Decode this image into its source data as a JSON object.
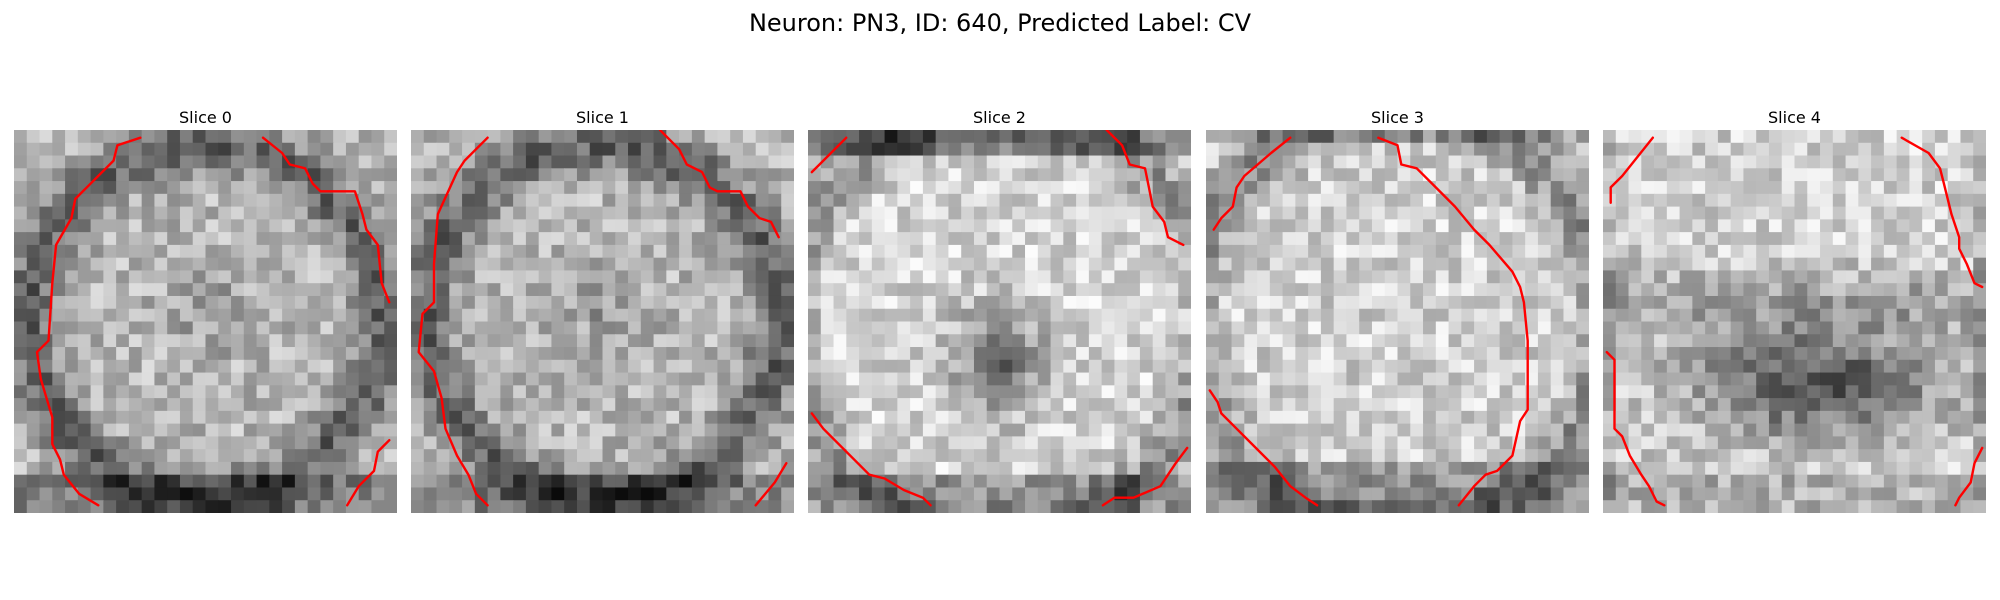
{
  "figure": {
    "title": "Neuron: PN3, ID: 640, Predicted Label: CV",
    "contour_color": "#ff0000",
    "grid_size": 30,
    "panels": [
      {
        "title": "Slice 0",
        "pattern": "ring",
        "contours": [
          [
            [
              0.33,
              0.02
            ],
            [
              0.27,
              0.04
            ],
            [
              0.26,
              0.08
            ],
            [
              0.21,
              0.13
            ],
            [
              0.16,
              0.18
            ],
            [
              0.15,
              0.23
            ],
            [
              0.11,
              0.3
            ],
            [
              0.1,
              0.4
            ],
            [
              0.09,
              0.55
            ],
            [
              0.06,
              0.58
            ],
            [
              0.07,
              0.65
            ],
            [
              0.1,
              0.75
            ],
            [
              0.1,
              0.82
            ],
            [
              0.12,
              0.86
            ],
            [
              0.13,
              0.9
            ],
            [
              0.17,
              0.95
            ],
            [
              0.22,
              0.98
            ]
          ],
          [
            [
              0.65,
              0.02
            ],
            [
              0.7,
              0.06
            ],
            [
              0.72,
              0.09
            ],
            [
              0.76,
              0.1
            ],
            [
              0.78,
              0.14
            ],
            [
              0.8,
              0.16
            ],
            [
              0.89,
              0.16
            ],
            [
              0.91,
              0.22
            ],
            [
              0.92,
              0.26
            ],
            [
              0.95,
              0.3
            ],
            [
              0.96,
              0.4
            ],
            [
              0.98,
              0.45
            ]
          ],
          [
            [
              0.98,
              0.81
            ],
            [
              0.95,
              0.84
            ],
            [
              0.94,
              0.89
            ],
            [
              0.9,
              0.93
            ],
            [
              0.87,
              0.98
            ]
          ]
        ]
      },
      {
        "title": "Slice 1",
        "pattern": "ring",
        "contours": [
          [
            [
              0.2,
              0.02
            ],
            [
              0.14,
              0.08
            ],
            [
              0.12,
              0.11
            ],
            [
              0.07,
              0.22
            ],
            [
              0.06,
              0.35
            ],
            [
              0.06,
              0.45
            ],
            [
              0.03,
              0.48
            ],
            [
              0.02,
              0.58
            ],
            [
              0.06,
              0.63
            ],
            [
              0.08,
              0.7
            ],
            [
              0.09,
              0.78
            ],
            [
              0.12,
              0.85
            ],
            [
              0.15,
              0.9
            ],
            [
              0.17,
              0.95
            ],
            [
              0.2,
              0.98
            ]
          ],
          [
            [
              0.65,
              0.0
            ],
            [
              0.7,
              0.05
            ],
            [
              0.72,
              0.09
            ],
            [
              0.76,
              0.11
            ],
            [
              0.78,
              0.15
            ],
            [
              0.8,
              0.16
            ],
            [
              0.86,
              0.16
            ],
            [
              0.88,
              0.2
            ],
            [
              0.9,
              0.22
            ],
            [
              0.91,
              0.23
            ],
            [
              0.94,
              0.24
            ],
            [
              0.96,
              0.28
            ]
          ],
          [
            [
              0.98,
              0.87
            ],
            [
              0.95,
              0.92
            ],
            [
              0.9,
              0.98
            ]
          ]
        ]
      },
      {
        "title": "Slice 2",
        "pattern": "center",
        "contours": [
          [
            [
              0.1,
              0.02
            ],
            [
              0.03,
              0.09
            ],
            [
              0.01,
              0.11
            ]
          ],
          [
            [
              0.78,
              0.0
            ],
            [
              0.82,
              0.04
            ],
            [
              0.84,
              0.09
            ],
            [
              0.88,
              0.1
            ],
            [
              0.89,
              0.15
            ],
            [
              0.9,
              0.2
            ],
            [
              0.93,
              0.24
            ],
            [
              0.94,
              0.28
            ],
            [
              0.98,
              0.3
            ]
          ],
          [
            [
              0.01,
              0.74
            ],
            [
              0.04,
              0.78
            ],
            [
              0.1,
              0.84
            ],
            [
              0.16,
              0.9
            ],
            [
              0.2,
              0.91
            ],
            [
              0.25,
              0.94
            ],
            [
              0.3,
              0.96
            ],
            [
              0.32,
              0.98
            ]
          ],
          [
            [
              0.99,
              0.83
            ],
            [
              0.96,
              0.87
            ],
            [
              0.92,
              0.93
            ],
            [
              0.85,
              0.96
            ],
            [
              0.8,
              0.96
            ],
            [
              0.77,
              0.98
            ]
          ]
        ]
      },
      {
        "title": "Slice 3",
        "pattern": "bright",
        "contours": [
          [
            [
              0.22,
              0.02
            ],
            [
              0.17,
              0.06
            ],
            [
              0.1,
              0.12
            ],
            [
              0.08,
              0.15
            ],
            [
              0.07,
              0.2
            ],
            [
              0.04,
              0.23
            ],
            [
              0.02,
              0.26
            ]
          ],
          [
            [
              0.45,
              0.02
            ],
            [
              0.5,
              0.04
            ],
            [
              0.51,
              0.09
            ],
            [
              0.55,
              0.1
            ],
            [
              0.6,
              0.15
            ],
            [
              0.65,
              0.2
            ],
            [
              0.7,
              0.26
            ],
            [
              0.74,
              0.3
            ],
            [
              0.8,
              0.37
            ],
            [
              0.82,
              0.41
            ],
            [
              0.83,
              0.45
            ],
            [
              0.84,
              0.55
            ],
            [
              0.84,
              0.6
            ],
            [
              0.84,
              0.73
            ],
            [
              0.82,
              0.76
            ],
            [
              0.8,
              0.85
            ],
            [
              0.76,
              0.89
            ],
            [
              0.73,
              0.9
            ],
            [
              0.7,
              0.93
            ],
            [
              0.66,
              0.98
            ]
          ],
          [
            [
              0.01,
              0.68
            ],
            [
              0.03,
              0.71
            ],
            [
              0.04,
              0.74
            ],
            [
              0.08,
              0.78
            ],
            [
              0.13,
              0.83
            ],
            [
              0.18,
              0.88
            ],
            [
              0.22,
              0.93
            ],
            [
              0.26,
              0.96
            ],
            [
              0.29,
              0.98
            ]
          ]
        ]
      },
      {
        "title": "Slice 4",
        "pattern": "band",
        "contours": [
          [
            [
              0.13,
              0.02
            ],
            [
              0.05,
              0.12
            ],
            [
              0.02,
              0.15
            ],
            [
              0.02,
              0.19
            ]
          ],
          [
            [
              0.78,
              0.02
            ],
            [
              0.85,
              0.06
            ],
            [
              0.88,
              0.1
            ],
            [
              0.89,
              0.14
            ],
            [
              0.9,
              0.18
            ],
            [
              0.91,
              0.22
            ],
            [
              0.93,
              0.28
            ],
            [
              0.93,
              0.31
            ],
            [
              0.95,
              0.35
            ],
            [
              0.97,
              0.4
            ],
            [
              0.99,
              0.41
            ]
          ],
          [
            [
              0.01,
              0.58
            ],
            [
              0.03,
              0.6
            ],
            [
              0.03,
              0.78
            ],
            [
              0.05,
              0.8
            ],
            [
              0.07,
              0.85
            ],
            [
              0.1,
              0.9
            ],
            [
              0.12,
              0.93
            ],
            [
              0.14,
              0.97
            ],
            [
              0.16,
              0.98
            ]
          ],
          [
            [
              0.99,
              0.83
            ],
            [
              0.97,
              0.87
            ],
            [
              0.96,
              0.92
            ],
            [
              0.93,
              0.96
            ],
            [
              0.92,
              0.98
            ]
          ]
        ]
      }
    ]
  }
}
